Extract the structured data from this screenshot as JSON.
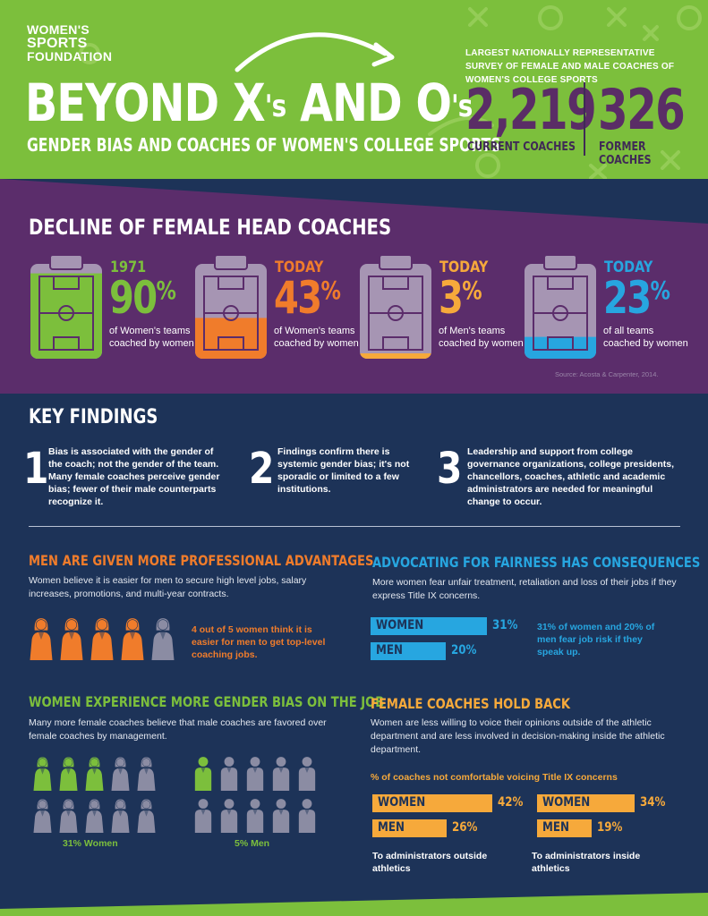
{
  "header": {
    "logo_line1": "WOMEN'S",
    "logo_line2": "SPORTS",
    "logo_line3": "FOUNDATION",
    "title_part1": "BEYOND X",
    "title_sup1": "'s",
    "title_part2": " AND O",
    "title_sup2": "'s",
    "subtitle": "GENDER BIAS AND COACHES OF WOMEN'S COLLEGE SPORTS",
    "survey_text": "LARGEST NATIONALLY REPRESENTATIVE SURVEY OF FEMALE AND MALE COACHES OF WOMEN'S COLLEGE SPORTS",
    "stat1_value": "2,219",
    "stat1_label": "CURRENT COACHES",
    "stat2_value": "326",
    "stat2_label": "FORMER COACHES"
  },
  "decline": {
    "title": "DECLINE OF FEMALE HEAD COACHES",
    "items": [
      {
        "year": "1971",
        "pct": "90",
        "unit": "%",
        "fraction": 0.9,
        "desc": "of Women's teams coached by women",
        "color": "#7cbf3c"
      },
      {
        "year": "TODAY",
        "pct": "43",
        "unit": "%",
        "fraction": 0.43,
        "desc": "of Women's teams coached by women",
        "color": "#f07c2b"
      },
      {
        "year": "TODAY",
        "pct": "3",
        "unit": "%",
        "fraction": 0.03,
        "desc": "of Men's teams coached by women",
        "color": "#f6a93b"
      },
      {
        "year": "TODAY",
        "pct": "23",
        "unit": "%",
        "fraction": 0.23,
        "desc": "of all teams coached by women",
        "color": "#27a6e0"
      }
    ],
    "source": "Source: Acosta & Carpenter, 2014."
  },
  "key_findings": {
    "title": "KEY FINDINGS",
    "items": [
      {
        "num": "1",
        "text": "Bias is associated with the gender of the coach; not the gender of the team. Many female coaches perceive gender bias; fewer of their male counterparts recognize it."
      },
      {
        "num": "2",
        "text": "Findings confirm there is systemic gender bias; it's not sporadic or limited to a few institutions."
      },
      {
        "num": "3",
        "text": "Leadership and support from college governance organizations, college presidents, chancellors, coaches, athletic and academic administrators are needed for meaningful change to occur."
      }
    ]
  },
  "advantages": {
    "title": "MEN ARE GIVEN MORE PROFESSIONAL ADVANTAGES",
    "body": "Women believe it is easier for men to secure high level jobs, salary increases, promotions, and multi-year contracts.",
    "highlighted": 4,
    "total": 5,
    "note": "4 out of 5 women think it is easier for men to get top-level coaching jobs."
  },
  "fairness": {
    "title": "ADVOCATING FOR FAIRNESS HAS CONSEQUENCES",
    "body": "More women fear unfair treatment, retaliation and loss of their jobs if they express Title IX concerns.",
    "bars": [
      {
        "label": "WOMEN",
        "value": "31%",
        "num": 31
      },
      {
        "label": "MEN",
        "value": "20%",
        "num": 20
      }
    ],
    "note": "31% of women and 20% of men fear job risk if they speak up."
  },
  "bias": {
    "title": "WOMEN EXPERIENCE MORE GENDER BIAS ON THE JOB",
    "body": "Many more female coaches believe that male coaches are favored over female coaches by management.",
    "women_label": "31% Women",
    "men_label": "5% Men"
  },
  "holdback": {
    "title": "FEMALE COACHES HOLD BACK",
    "body": "Women are less willing to voice their opinions outside of the athletic department and are less involved in decision-making inside the athletic department.",
    "subtitle": "% of coaches not comfortable voicing Title IX concerns",
    "groups": [
      {
        "caption": "To administrators outside athletics",
        "bars": [
          {
            "label": "WOMEN",
            "value": "42%",
            "num": 42
          },
          {
            "label": "MEN",
            "value": "26%",
            "num": 26
          }
        ]
      },
      {
        "caption": "To administrators inside athletics",
        "bars": [
          {
            "label": "WOMEN",
            "value": "34%",
            "num": 34
          },
          {
            "label": "MEN",
            "value": "19%",
            "num": 19
          }
        ]
      }
    ]
  },
  "colors": {
    "green": "#7cbf3c",
    "purple": "#5b2d6b",
    "navy": "#1d3358",
    "orange": "#f07c2b",
    "blue": "#27a6e0",
    "gold": "#f6a93b",
    "grey": "#8b8ca3"
  }
}
